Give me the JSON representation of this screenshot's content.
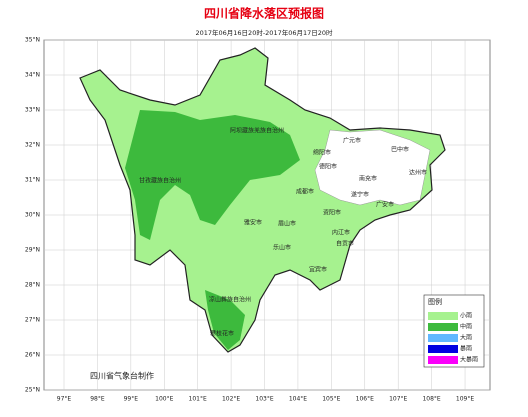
{
  "title": "四川省降水落区预报图",
  "subtitle": "2017年06月16日20时-2017年06月17日20时",
  "credit": "四川省气象台制作",
  "lat_ticks": [
    {
      "value": 35,
      "label": "35°N"
    },
    {
      "value": 34,
      "label": "34°N"
    },
    {
      "value": 33,
      "label": "33°N"
    },
    {
      "value": 32,
      "label": "32°N"
    },
    {
      "value": 31,
      "label": "31°N"
    },
    {
      "value": 30,
      "label": "30°N"
    },
    {
      "value": 29,
      "label": "29°N"
    },
    {
      "value": 28,
      "label": "28°N"
    },
    {
      "value": 27,
      "label": "27°N"
    },
    {
      "value": 26,
      "label": "26°N"
    },
    {
      "value": 25,
      "label": "25°N"
    }
  ],
  "lon_ticks": [
    {
      "value": 97,
      "label": "97°E"
    },
    {
      "value": 98,
      "label": "98°E"
    },
    {
      "value": 99,
      "label": "99°E"
    },
    {
      "value": 100,
      "label": "100°E"
    },
    {
      "value": 101,
      "label": "101°E"
    },
    {
      "value": 102,
      "label": "102°E"
    },
    {
      "value": 103,
      "label": "103°E"
    },
    {
      "value": 104,
      "label": "104°E"
    },
    {
      "value": 105,
      "label": "105°E"
    },
    {
      "value": 106,
      "label": "106°E"
    },
    {
      "value": 107,
      "label": "107°E"
    },
    {
      "value": 108,
      "label": "108°E"
    },
    {
      "value": 109,
      "label": "109°E"
    }
  ],
  "cities": [
    "阿坝藏族羌族自治州",
    "广元市",
    "巴中市",
    "绵阳市",
    "德阳市",
    "南充市",
    "达州市",
    "甘孜藏族自治州",
    "成都市",
    "遂宁市",
    "广安市",
    "资阳市",
    "雅安市",
    "眉山市",
    "内江市",
    "乐山市",
    "自贡市",
    "宜宾市",
    "凉山彝族自治州",
    "攀枝花市"
  ],
  "legend": {
    "title": "图例",
    "items": [
      {
        "label": "小雨",
        "color": "#a6f28f"
      },
      {
        "label": "中雨",
        "color": "#3dba3d"
      },
      {
        "label": "大雨",
        "color": "#61b8ff"
      },
      {
        "label": "暴雨",
        "color": "#0000e1"
      },
      {
        "label": "大暴雨",
        "color": "#fa00fa"
      }
    ]
  }
}
